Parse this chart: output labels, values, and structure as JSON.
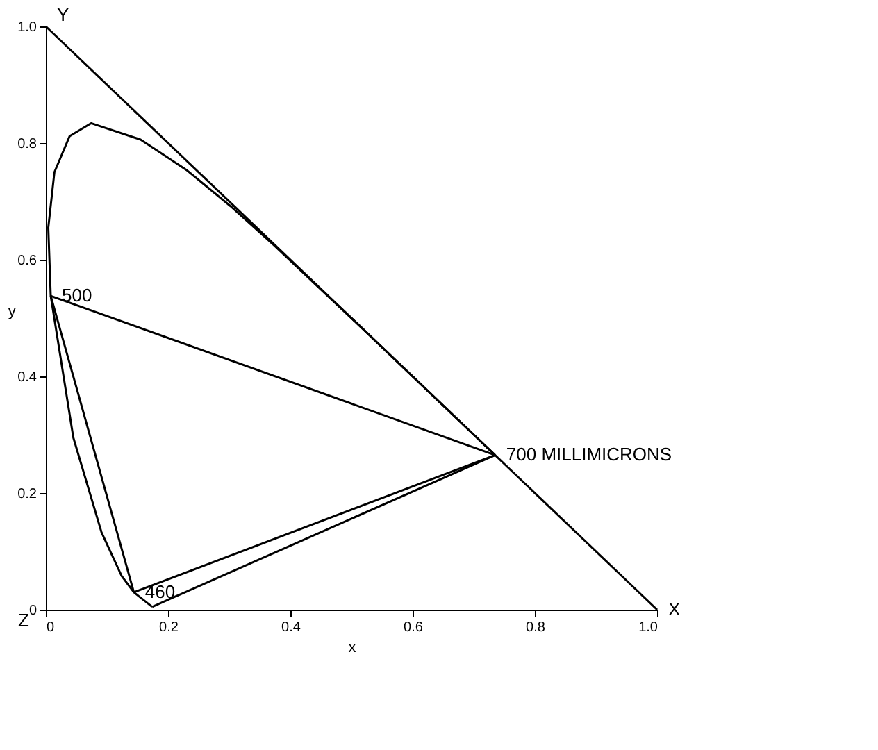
{
  "chart_data": {
    "type": "line",
    "xlabel": "x",
    "ylabel": "y",
    "xlim": [
      0,
      1
    ],
    "ylim": [
      0,
      1
    ],
    "xticks": [
      0,
      0.2,
      0.4,
      0.6,
      0.8,
      {
        "value": 1,
        "label": "1.0"
      }
    ],
    "yticks": [
      0,
      0.2,
      0.4,
      0.6,
      0.8,
      {
        "value": 1,
        "label": "1.0"
      }
    ],
    "grid": false,
    "legend": false,
    "marker": "none",
    "line_style": "solid",
    "series": [
      {
        "color": "#000000",
        "x": [
          0,
          1
        ],
        "values": [
          1,
          0
        ]
      },
      {
        "color": "#000000",
        "x": [
          0.174,
          0.144,
          0.124,
          0.091,
          0.045,
          0.008,
          0.004,
          0.014,
          0.039,
          0.074,
          0.155,
          0.23,
          0.302,
          0.373,
          0.444,
          0.513,
          0.627,
          0.692,
          0.735
        ],
        "values": [
          0.005,
          0.03,
          0.058,
          0.133,
          0.295,
          0.538,
          0.655,
          0.75,
          0.812,
          0.834,
          0.806,
          0.754,
          0.692,
          0.625,
          0.555,
          0.487,
          0.373,
          0.308,
          0.265
        ]
      },
      {
        "color": "#000000",
        "x": [
          0.174,
          0.735
        ],
        "values": [
          0.005,
          0.265
        ]
      },
      {
        "color": "#000000",
        "x": [
          0.008,
          0.735
        ],
        "values": [
          0.538,
          0.265
        ]
      },
      {
        "color": "#000000",
        "x": [
          0.008,
          0.144
        ],
        "values": [
          0.538,
          0.03
        ]
      },
      {
        "color": "#000000",
        "x": [
          0.144,
          0.735
        ],
        "values": [
          0.03,
          0.265
        ]
      }
    ],
    "annotations": [
      {
        "text": "500",
        "x": 0.008,
        "y": 0.538
      },
      {
        "text": "460",
        "x": 0.144,
        "y": 0.03
      },
      {
        "text": "700 MILLIMICRONS",
        "x": 0.735,
        "y": 0.265
      },
      {
        "text": "Y",
        "x": 0,
        "y": 1
      },
      {
        "text": "X",
        "x": 1,
        "y": 0
      },
      "Z"
    ]
  }
}
